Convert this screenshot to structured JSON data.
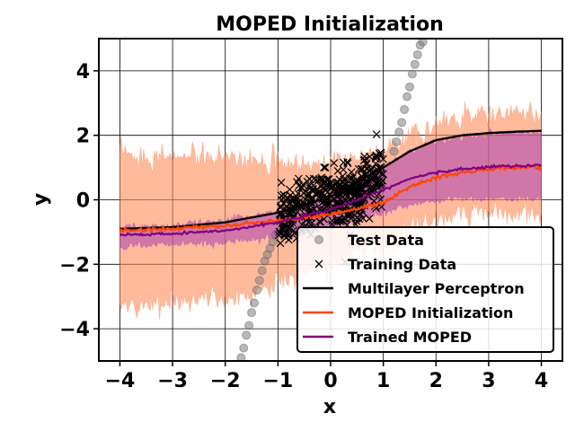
{
  "chart_data": {
    "type": "scatter",
    "title": "MOPED Initialization",
    "xlabel": "x",
    "ylabel": "y",
    "xlim": [
      -4.4,
      4.4
    ],
    "ylim": [
      -5,
      5
    ],
    "xticks": [
      "−4",
      "−3",
      "−2",
      "−1",
      "0",
      "1",
      "2",
      "3",
      "4"
    ],
    "yticks": [
      "−4",
      "−2",
      "0",
      "2",
      "4"
    ],
    "grid": true,
    "legend_position": "lower-right",
    "series": [
      {
        "name": "Test Data",
        "kind": "points",
        "marker": "circle",
        "color": "#808080",
        "x": [
          -1.7,
          -1.65,
          -1.6,
          -1.55,
          -1.5,
          -1.45,
          -1.4,
          -1.35,
          -1.3,
          -1.25,
          -1.2,
          -1.15,
          -1.1,
          -1.05,
          -1.0,
          1.2,
          1.25,
          1.3,
          1.35,
          1.4,
          1.45,
          1.5,
          1.55,
          1.6,
          1.65,
          1.7,
          1.75
        ],
        "y": [
          -4.9,
          -4.6,
          -4.2,
          -3.9,
          -3.5,
          -3.2,
          -2.8,
          -2.5,
          -2.2,
          -1.9,
          -1.7,
          -1.5,
          -1.3,
          -1.1,
          -1.0,
          1.5,
          1.8,
          2.1,
          2.4,
          2.8,
          3.2,
          3.5,
          3.9,
          4.2,
          4.5,
          4.8,
          4.9
        ]
      },
      {
        "name": "Training Data",
        "kind": "points",
        "marker": "x",
        "color": "#000000",
        "x_range": [
          -1,
          1
        ],
        "y_center": "x^3 with noise"
      },
      {
        "name": "Multilayer Perceptron",
        "kind": "line",
        "color": "#000000",
        "x": [
          -4,
          -3,
          -2,
          -1,
          0,
          1,
          1.5,
          2,
          2.5,
          3,
          3.5,
          4
        ],
        "y": [
          -0.9,
          -0.85,
          -0.7,
          -0.4,
          0.1,
          1.0,
          1.5,
          1.85,
          2.0,
          2.07,
          2.11,
          2.14
        ]
      },
      {
        "name": "MOPED Initialization",
        "kind": "line_with_band",
        "color": "#ff4500",
        "band_color": "#ff8c5a",
        "x": [
          -4,
          -3,
          -2,
          -1,
          0,
          1,
          1.5,
          2,
          2.5,
          3,
          3.5,
          4
        ],
        "y": [
          -0.95,
          -0.9,
          -0.8,
          -0.65,
          -0.45,
          -0.1,
          0.4,
          0.7,
          0.85,
          0.95,
          1.0,
          1.0
        ],
        "band_upper": [
          1.4,
          1.35,
          1.3,
          1.2,
          1.1,
          1.5,
          2.0,
          2.35,
          2.5,
          2.6,
          2.65,
          2.6
        ],
        "band_lower": [
          -3.3,
          -3.2,
          -3.0,
          -2.6,
          -2.0,
          -1.4,
          -0.9,
          -0.6,
          -0.45,
          -0.4,
          -0.45,
          -0.5
        ]
      },
      {
        "name": "Trained MOPED",
        "kind": "line_with_band",
        "color": "#800080",
        "band_color": "#b04bb0",
        "x": [
          -4,
          -3,
          -2,
          -1,
          0,
          1,
          1.5,
          2,
          2.5,
          3,
          3.5,
          4
        ],
        "y": [
          -1.1,
          -1.05,
          -0.95,
          -0.7,
          -0.3,
          0.3,
          0.65,
          0.85,
          0.95,
          1.02,
          1.05,
          1.07
        ],
        "band_upper": [
          -0.85,
          -0.8,
          -0.65,
          -0.35,
          0.15,
          1.0,
          1.5,
          1.8,
          1.95,
          2.03,
          2.08,
          2.1
        ],
        "band_lower": [
          -1.45,
          -1.4,
          -1.3,
          -1.15,
          -0.9,
          -0.4,
          -0.15,
          0.0,
          0.05,
          0.05,
          0.05,
          0.05
        ]
      }
    ]
  },
  "legend": [
    {
      "label": "Test Data",
      "symbol": "circle",
      "color": "#808080"
    },
    {
      "label": "Training Data",
      "symbol": "x",
      "color": "#000000"
    },
    {
      "label": "Multilayer Perceptron",
      "symbol": "line",
      "color": "#000000"
    },
    {
      "label": "MOPED Initialization",
      "symbol": "line",
      "color": "#ff4500"
    },
    {
      "label": "Trained MOPED",
      "symbol": "line",
      "color": "#800080"
    }
  ]
}
